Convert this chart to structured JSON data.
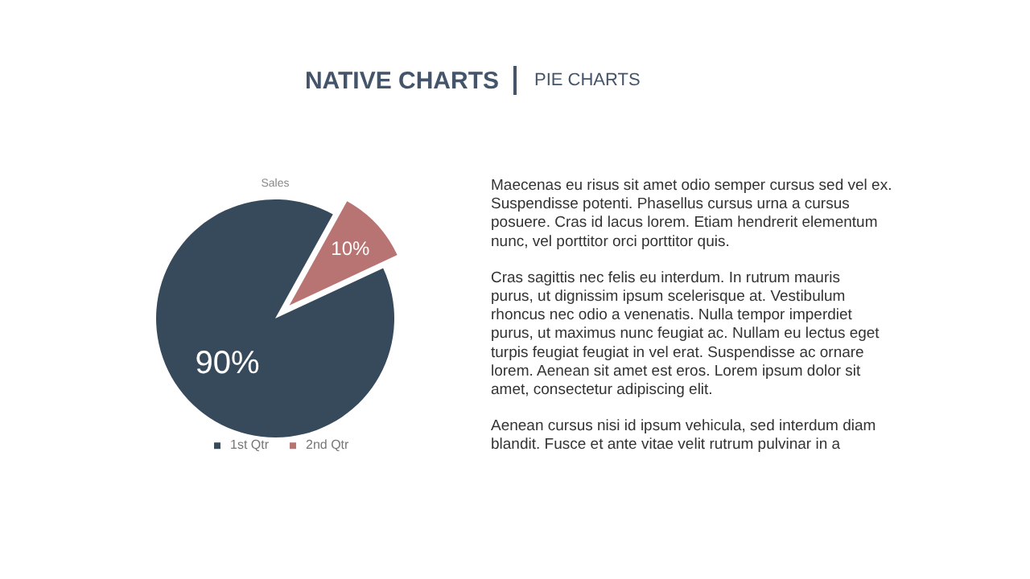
{
  "chart_data": {
    "type": "pie",
    "title": "Sales",
    "categories": [
      "1st Qtr",
      "2nd Qtr"
    ],
    "values": [
      90,
      10
    ],
    "colors": [
      "#374a5c",
      "#b87473"
    ],
    "value_labels": [
      "90%",
      "10%"
    ],
    "legend": "bottom",
    "annotations": [
      "NATIVE CHARTS",
      "PIE CHARTS",
      "Maecenas eu risus sit amet odio semper cursus sed vel ex. Suspendisse potenti. Phasellus cursus urna a cursus posuere. Cras id lacus lorem. Etiam hendrerit elementum nunc, vel porttitor orci porttitor quis.",
      "Cras sagittis nec felis eu interdum. In rutrum mauris purus, ut dignissim ipsum scelerisque at. Vestibulum rhoncus nec odio a venenatis. Nulla tempor imperdiet purus, ut maximus nunc feugiat ac. Nullam eu lectus eget turpis feugiat feugiat in vel erat. Suspendisse ac ornare lorem. Aenean sit amet est eros. Lorem ipsum dolor sit amet, consectetur adipiscing elit.",
      "Aenean cursus nisi id ipsum vehicula, sed interdum diam blandit. Fusce et ante vitae velit rutrum pulvinar in a"
    ]
  }
}
